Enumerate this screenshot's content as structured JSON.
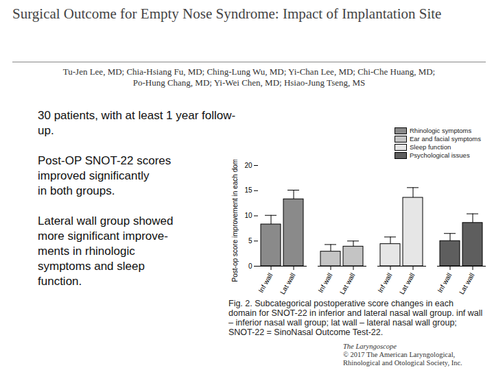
{
  "header": {
    "title": "Surgical Outcome for Empty Nose Syndrome: Impact of Implantation Site",
    "authors": [
      "Tu-Jen Lee, MD; Chia-Hsiang Fu, MD; Ching-Lung Wu, MD; Yi-Chan Lee, MD; Chi-Che Huang, MD;",
      "Po-Hung Chang, MD; Yi-Wei Chen, MD; Hsiao-Jung Tseng, MS"
    ]
  },
  "bullets": [
    [
      "30 patients, with at least 1 year follow-up."
    ],
    [
      "Post-OP SNOT-22 scores",
      "improved significantly",
      "in both groups."
    ],
    [
      "Lateral wall group showed",
      "more significant improve-",
      "ments in rhinologic",
      "symptoms and sleep",
      "function."
    ]
  ],
  "chart_data": {
    "type": "bar",
    "categories": [
      "Inf wall",
      "Lat wall"
    ],
    "ylabel": "Post-op score improvement in each domain",
    "ylim": [
      0,
      20
    ],
    "yticks": [
      0,
      5,
      10,
      15,
      20
    ],
    "legend": "top-right",
    "series": [
      {
        "name": "Rhinologic symptoms",
        "color": "#8a8a8a",
        "values": [
          8.3,
          13.3
        ],
        "errors": [
          1.8,
          1.8
        ]
      },
      {
        "name": "Ear and facial symptoms",
        "color": "#c4c4c4",
        "values": [
          2.9,
          3.9
        ],
        "errors": [
          1.4,
          1.1
        ]
      },
      {
        "name": "Sleep function",
        "color": "#e6e6e6",
        "values": [
          4.4,
          13.6
        ],
        "errors": [
          1.4,
          2.0
        ]
      },
      {
        "name": "Psychological issues",
        "color": "#5e5e5e",
        "values": [
          5.0,
          8.6
        ],
        "errors": [
          1.5,
          1.8
        ]
      }
    ],
    "caption": "Fig. 2. Subcategorical postoperative score changes in each domain for SNOT-22 in inferior and lateral nasal wall group. inf wall – inferior nasal wall group; lat wall – lateral nasal wall group; SNOT-22 = SinoNasal Outcome Test-22."
  },
  "footer": {
    "journal": "The Laryngoscope",
    "copyright": "© 2017 The American Laryngological, Rhinological and Otological Society, Inc."
  }
}
